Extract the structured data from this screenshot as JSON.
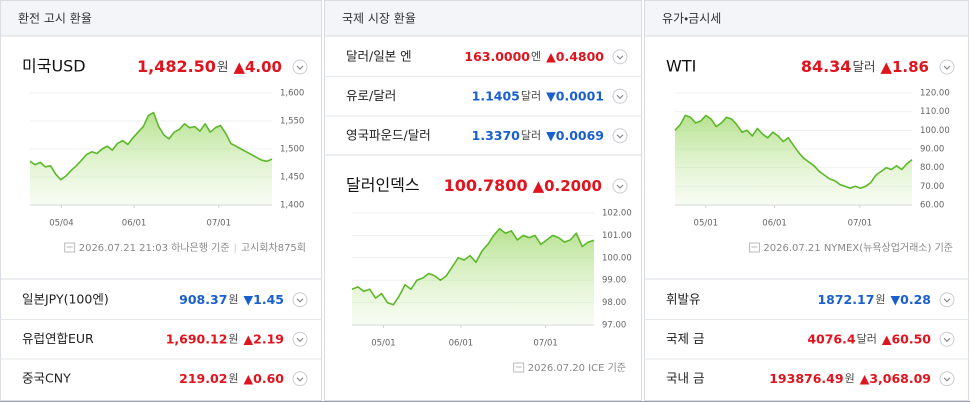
{
  "panels": [
    {
      "title": "환전 고시 환율",
      "main": {
        "name": "미국USD",
        "value": "1,482.50",
        "unit": "원",
        "change": "▲4.00"
      },
      "chart": {
        "type": "area",
        "color": "#5cb82a",
        "ylim": [
          1400,
          1600
        ],
        "yticks": [
          {
            "value": 1600,
            "label": "1,600"
          },
          {
            "value": 1550,
            "label": "1,550"
          },
          {
            "value": 1500,
            "label": "1,500"
          },
          {
            "value": 1450,
            "label": "1,450"
          },
          {
            "value": 1400,
            "label": "1,400"
          }
        ],
        "xticks": [
          "05/04",
          "06/01",
          "07/01"
        ],
        "values": [
          1478,
          1472,
          1476,
          1468,
          1470,
          1455,
          1445,
          1452,
          1462,
          1470,
          1480,
          1490,
          1495,
          1492,
          1500,
          1505,
          1498,
          1510,
          1515,
          1508,
          1520,
          1530,
          1540,
          1560,
          1565,
          1540,
          1525,
          1518,
          1530,
          1535,
          1545,
          1538,
          1540,
          1532,
          1545,
          1530,
          1538,
          1542,
          1528,
          1510,
          1505,
          1500,
          1495,
          1490,
          1485,
          1480,
          1478,
          1482
        ]
      },
      "footer": [
        "2026.07.21 21:03 하나은행 기준",
        "고시회차875회"
      ],
      "rows": [
        {
          "name": "일본JPY(100엔)",
          "value": "908.37",
          "unit": "원",
          "change": "▼1.45"
        },
        {
          "name": "유럽연합EUR",
          "value": "1,690.12",
          "unit": "원",
          "change": "▲2.19"
        },
        {
          "name": "중국CNY",
          "value": "219.02",
          "unit": "원",
          "change": "▲0.60"
        }
      ]
    },
    {
      "title": "국제 시장 환율",
      "rows": [
        {
          "name": "달러/일본 엔",
          "value": "163.0000",
          "unit": "엔",
          "change": "▲0.4800"
        },
        {
          "name": "유로/달러",
          "value": "1.1405",
          "unit": "달러",
          "change": "▼0.0001"
        },
        {
          "name": "영국파운드/달러",
          "value": "1.3370",
          "unit": "달러",
          "change": "▼0.0069"
        }
      ],
      "main": {
        "name": "달러인덱스",
        "value": "100.7800",
        "unit": "",
        "change": "▲0.2000"
      },
      "chart": {
        "type": "area",
        "color": "#5cb82a",
        "ylim": [
          97,
          102
        ],
        "yticks": [
          {
            "value": 102,
            "label": "102.00"
          },
          {
            "value": 101,
            "label": "101.00"
          },
          {
            "value": 100,
            "label": "100.00"
          },
          {
            "value": 99,
            "label": "99.00"
          },
          {
            "value": 98,
            "label": "98.00"
          },
          {
            "value": 97,
            "label": "97.00"
          }
        ],
        "xticks": [
          "05/01",
          "06/01",
          "07/01"
        ],
        "values": [
          98.6,
          98.7,
          98.5,
          98.6,
          98.2,
          98.4,
          98.0,
          97.9,
          98.3,
          98.8,
          98.6,
          99.0,
          99.1,
          99.3,
          99.2,
          99.0,
          99.2,
          99.6,
          100.0,
          99.9,
          100.1,
          99.8,
          100.3,
          100.6,
          101.0,
          101.3,
          101.1,
          101.2,
          100.8,
          101.0,
          100.9,
          101.0,
          100.6,
          100.8,
          101.0,
          100.9,
          100.7,
          100.8,
          101.1,
          100.5,
          100.7,
          100.78
        ]
      },
      "footer": [
        "2026.07.20 ICE 기준"
      ]
    },
    {
      "title": "유가・금시세",
      "main": {
        "name": "WTI",
        "value": "84.34",
        "unit": "달러",
        "change": "▲1.86"
      },
      "chart": {
        "type": "area",
        "color": "#5cb82a",
        "ylim": [
          60,
          120
        ],
        "yticks": [
          {
            "value": 120,
            "label": "120.00"
          },
          {
            "value": 110,
            "label": "110.00"
          },
          {
            "value": 100,
            "label": "100.00"
          },
          {
            "value": 90,
            "label": "90.00"
          },
          {
            "value": 80,
            "label": "80.00"
          },
          {
            "value": 70,
            "label": "70.00"
          },
          {
            "value": 60,
            "label": "60.00"
          }
        ],
        "xticks": [
          "05/01",
          "06/01",
          "07/01"
        ],
        "values": [
          100,
          103,
          108,
          107,
          104,
          105,
          108,
          106,
          102,
          104,
          107,
          106,
          103,
          99,
          100,
          97,
          101,
          98,
          96,
          99,
          97,
          94,
          96,
          92,
          88,
          85,
          83,
          81,
          78,
          76,
          74,
          73,
          71,
          70,
          69,
          70,
          69,
          70,
          72,
          76,
          78,
          80,
          79,
          81,
          79,
          82,
          84.34
        ]
      },
      "footer": [
        "2026.07.21 NYMEX(뉴욕상업거래소) 기준"
      ],
      "rows": [
        {
          "name": "휘발유",
          "value": "1872.17",
          "unit": "원",
          "change": "▼0.28"
        },
        {
          "name": "국제 금",
          "value": "4076.4",
          "unit": "달러",
          "change": "▲60.50"
        },
        {
          "name": "국내 금",
          "value": "193876.49",
          "unit": "원",
          "change": "▲3,068.09"
        }
      ]
    }
  ]
}
